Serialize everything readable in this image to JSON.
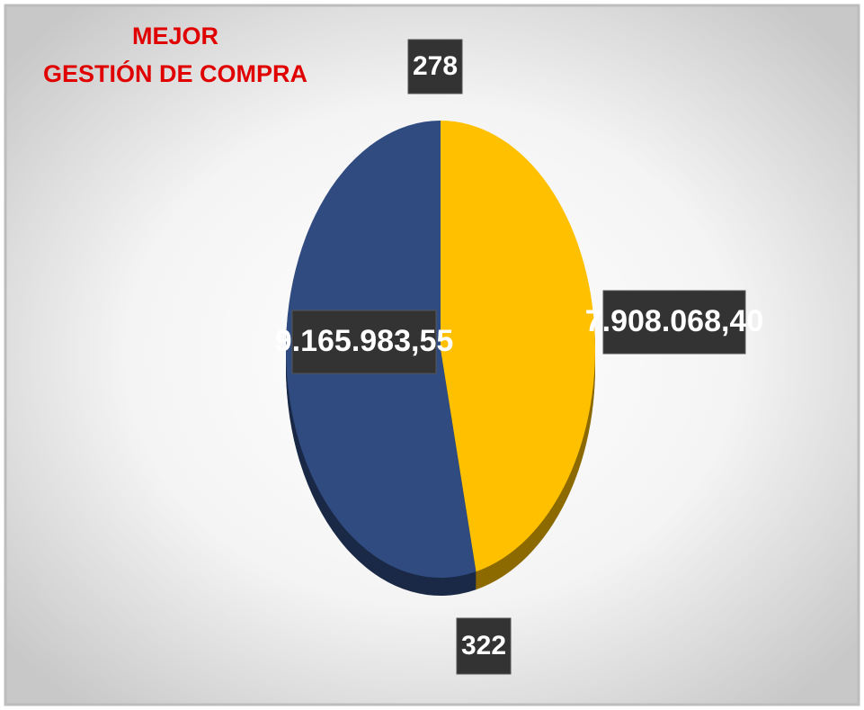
{
  "chart_data": {
    "type": "pie",
    "title": [
      "MEJOR",
      "GESTIÓN DE COMPRA"
    ],
    "values": [
      7908068.4,
      9165983.55
    ],
    "value_labels": [
      "7.908.068,40",
      "9.165.983,55"
    ],
    "counts": [
      278,
      322
    ],
    "colors": [
      "#ffc000",
      "#2f4b80"
    ]
  }
}
